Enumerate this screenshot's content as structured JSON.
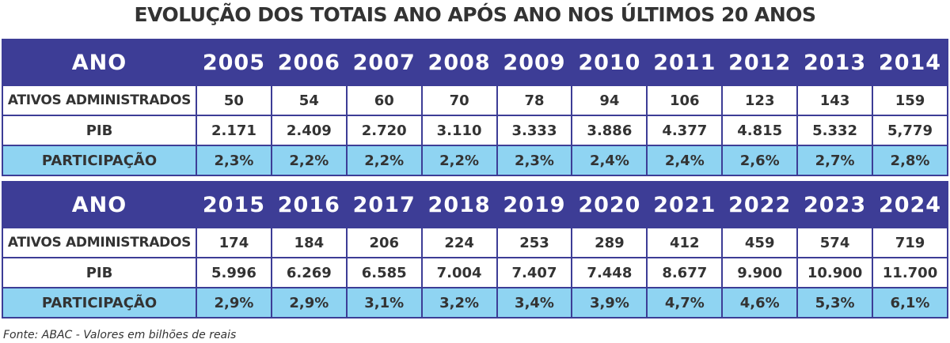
{
  "title": "EVOLUÇÃO DOS TOTAIS ANO APÓS ANO NOS ÚLTIMOS 20 ANOS",
  "footnote": "Fonte: ABAC - Valores em bilhões de reais",
  "colors": {
    "header_bg": "#3d3d96",
    "participacao_bg": "#8fd4f2",
    "text": "#333333"
  },
  "chart_data": {
    "type": "table",
    "title": "EVOLUÇÃO DOS TOTAIS ANO APÓS ANO NOS ÚLTIMOS 20 ANOS",
    "row_labels": {
      "header": "ANO",
      "ativos": "ATIVOS ADMINISTRADOS",
      "pib": "PIB",
      "participacao": "PARTICIPAÇÃO"
    },
    "blocks": [
      {
        "years": [
          "2005",
          "2006",
          "2007",
          "2008",
          "2009",
          "2010",
          "2011",
          "2012",
          "2013",
          "2014"
        ],
        "ativos": [
          "50",
          "54",
          "60",
          "70",
          "78",
          "94",
          "106",
          "123",
          "143",
          "159"
        ],
        "pib": [
          "2.171",
          "2.409",
          "2.720",
          "3.110",
          "3.333",
          "3.886",
          "4.377",
          "4.815",
          "5.332",
          "5,779"
        ],
        "participacao": [
          "2,3%",
          "2,2%",
          "2,2%",
          "2,2%",
          "2,3%",
          "2,4%",
          "2,4%",
          "2,6%",
          "2,7%",
          "2,8%"
        ]
      },
      {
        "years": [
          "2015",
          "2016",
          "2017",
          "2018",
          "2019",
          "2020",
          "2021",
          "2022",
          "2023",
          "2024"
        ],
        "ativos": [
          "174",
          "184",
          "206",
          "224",
          "253",
          "289",
          "412",
          "459",
          "574",
          "719"
        ],
        "pib": [
          "5.996",
          "6.269",
          "6.585",
          "7.004",
          "7.407",
          "7.448",
          "8.677",
          "9.900",
          "10.900",
          "11.700"
        ],
        "participacao": [
          "2,9%",
          "2,9%",
          "3,1%",
          "3,2%",
          "3,4%",
          "3,9%",
          "4,7%",
          "4,6%",
          "5,3%",
          "6,1%"
        ]
      }
    ]
  }
}
